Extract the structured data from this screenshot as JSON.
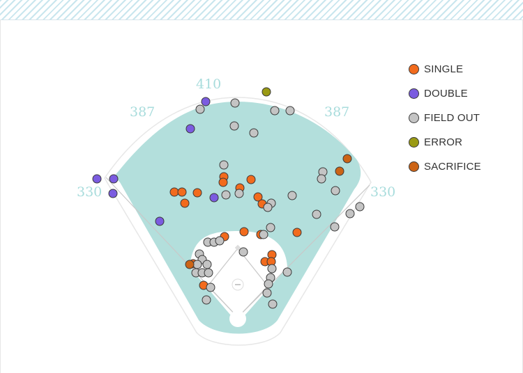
{
  "chart_data": {
    "type": "scatter",
    "title": "",
    "xlabel": "",
    "ylabel": "",
    "fence_distances": {
      "left_field_line": "330",
      "left_center": "387",
      "center_field": "410",
      "right_center": "387",
      "right_field_line": "330"
    },
    "legend_position": "top-right",
    "series": [
      {
        "name": "SINGLE",
        "color": "#f26b1d",
        "points": [
          [
            250,
            276
          ],
          [
            261,
            276
          ],
          [
            283,
            277
          ],
          [
            265,
            292
          ],
          [
            321,
            254
          ],
          [
            320,
            262
          ],
          [
            344,
            270
          ],
          [
            360,
            258
          ],
          [
            370,
            283
          ],
          [
            376,
            293
          ],
          [
            350,
            333
          ],
          [
            374,
            337
          ],
          [
            426,
            334
          ],
          [
            322,
            340
          ],
          [
            277,
            379
          ],
          [
            292,
            410
          ],
          [
            380,
            376
          ],
          [
            390,
            366
          ],
          [
            389,
            376
          ]
        ]
      },
      {
        "name": "DOUBLE",
        "color": "#7b5ce0",
        "points": [
          [
            295,
            146
          ],
          [
            273,
            185
          ],
          [
            139,
            257
          ],
          [
            163,
            257
          ],
          [
            162,
            278
          ],
          [
            307,
            284
          ],
          [
            229,
            318
          ]
        ]
      },
      {
        "name": "FIELD OUT",
        "color": "#c4c4c4",
        "points": [
          [
            287,
            157
          ],
          [
            337,
            148
          ],
          [
            394,
            159
          ],
          [
            416,
            159
          ],
          [
            336,
            181
          ],
          [
            364,
            191
          ],
          [
            321,
            237
          ],
          [
            324,
            280
          ],
          [
            343,
            278
          ],
          [
            389,
            292
          ],
          [
            384,
            298
          ],
          [
            419,
            281
          ],
          [
            463,
            247
          ],
          [
            461,
            257
          ],
          [
            481,
            274
          ],
          [
            454,
            308
          ],
          [
            480,
            326
          ],
          [
            502,
            307
          ],
          [
            516,
            297
          ],
          [
            388,
            327
          ],
          [
            378,
            337
          ],
          [
            298,
            348
          ],
          [
            307,
            348
          ],
          [
            315,
            346
          ],
          [
            349,
            362
          ],
          [
            286,
            365
          ],
          [
            290,
            373
          ],
          [
            283,
            380
          ],
          [
            297,
            380
          ],
          [
            281,
            392
          ],
          [
            290,
            392
          ],
          [
            299,
            392
          ],
          [
            390,
            386
          ],
          [
            412,
            391
          ],
          [
            388,
            399
          ],
          [
            385,
            408
          ],
          [
            302,
            413
          ],
          [
            383,
            421
          ],
          [
            296,
            431
          ],
          [
            391,
            437
          ]
        ]
      },
      {
        "name": "ERROR",
        "color": "#9a9a14",
        "points": [
          [
            382,
            132
          ]
        ]
      },
      {
        "name": "SACRIFICE",
        "color": "#cc6416",
        "points": [
          [
            498,
            228
          ],
          [
            487,
            246
          ],
          [
            272,
            380
          ]
        ]
      }
    ]
  },
  "legend": {
    "items": [
      {
        "label": "SINGLE",
        "color": "#f26b1d"
      },
      {
        "label": "DOUBLE",
        "color": "#7b5ce0"
      },
      {
        "label": "FIELD OUT",
        "color": "#c4c4c4"
      },
      {
        "label": "ERROR",
        "color": "#9a9a14"
      },
      {
        "label": "SACRIFICE",
        "color": "#cc6416"
      }
    ]
  },
  "colors": {
    "grass": "#b3dfdc",
    "infield_dirt": "#ffffff",
    "outline": "#e7e7e7",
    "lines": "#c8c8c8",
    "header_stripe": "#c9e6ee"
  }
}
